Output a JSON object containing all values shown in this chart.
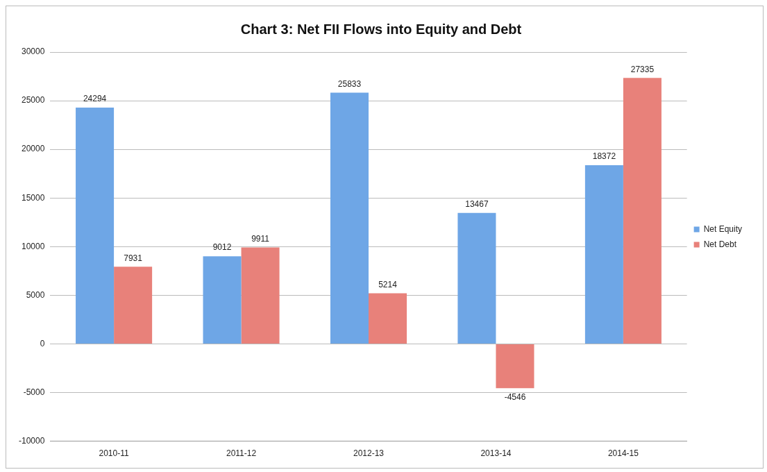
{
  "chart_data": {
    "type": "bar",
    "title": "Chart 3: Net FII Flows into Equity and Debt",
    "categories": [
      "2010-11",
      "2011-12",
      "2012-13",
      "2013-14",
      "2014-15"
    ],
    "series": [
      {
        "name": "Net Equity",
        "color": "#6ea6e6",
        "values": [
          24294,
          9012,
          25833,
          13467,
          18372
        ]
      },
      {
        "name": "Net Debt",
        "color": "#e8817a",
        "values": [
          7931,
          9911,
          5214,
          -4546,
          27335
        ]
      }
    ],
    "ylim": [
      -10000,
      30000
    ],
    "yticks": [
      -10000,
      -5000,
      0,
      5000,
      10000,
      15000,
      20000,
      25000,
      30000
    ],
    "grid": "y",
    "legend": "right",
    "data_labels": true
  }
}
